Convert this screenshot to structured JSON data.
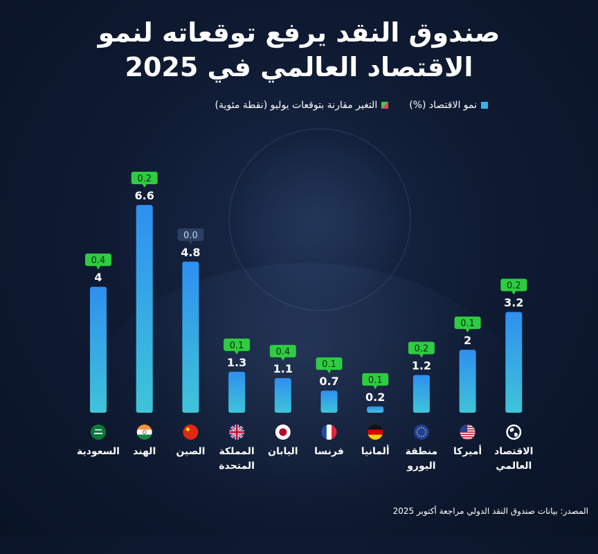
{
  "title_line1": "صندوق النقد يرفع توقعاته لنمو",
  "title_line2": "الاقتصاد العالمي في 2025",
  "legend": {
    "growth": "نمو الاقتصاد (%)",
    "change": "التغير مقارنة بتوقعات يوليو (نقطة مئوية)"
  },
  "source": "المصدر: بيانات صندوق النقد الدولي مراجعة أكتوبر 2025",
  "colors": {
    "bar": "#35b5e8",
    "badge_up": "#2ecc40",
    "badge_flat": "#2a3f63"
  },
  "chart_data": {
    "type": "bar",
    "title": "صندوق النقد يرفع توقعاته لنمو الاقتصاد العالمي في 2025",
    "ylabel": "نمو الاقتصاد (%)",
    "ylim": [
      0,
      7
    ],
    "categories": [
      {
        "label1": "السعودية",
        "label2": "",
        "flag": "saudi-flag-icon"
      },
      {
        "label1": "الهند",
        "label2": "",
        "flag": "india-flag-icon"
      },
      {
        "label1": "الصين",
        "label2": "",
        "flag": "china-flag-icon"
      },
      {
        "label1": "المملكة",
        "label2": "المتحدة",
        "flag": "uk-flag-icon"
      },
      {
        "label1": "اليابان",
        "label2": "",
        "flag": "japan-flag-icon"
      },
      {
        "label1": "فرنسا",
        "label2": "",
        "flag": "france-flag-icon"
      },
      {
        "label1": "ألمانيا",
        "label2": "",
        "flag": "germany-flag-icon"
      },
      {
        "label1": "منطقة",
        "label2": "اليورو",
        "flag": "eu-flag-icon"
      },
      {
        "label1": "أميركا",
        "label2": "",
        "flag": "usa-flag-icon"
      },
      {
        "label1": "الاقتصاد",
        "label2": "العالمي",
        "flag": "globe-icon"
      }
    ],
    "series": [
      {
        "name": "نمو الاقتصاد (%)",
        "values": [
          4,
          6.6,
          4.8,
          1.3,
          1.1,
          0.7,
          0.2,
          1.2,
          2,
          3.2
        ],
        "labels": [
          "4",
          "6.6",
          "4.8",
          "1.3",
          "1.1",
          "0.7",
          "0.2",
          "1.2",
          "2",
          "3.2"
        ]
      },
      {
        "name": "التغير مقارنة بتوقعات يوليو (نقطة مئوية)",
        "values": [
          0.4,
          0.2,
          0.0,
          0.1,
          0.4,
          0.1,
          0.1,
          0.2,
          0.1,
          0.2
        ],
        "labels": [
          "0.4",
          "0.2",
          "0.0",
          "0.1",
          "0.4",
          "0.1",
          "0.1",
          "0.2",
          "0.1",
          "0.2"
        ]
      }
    ]
  }
}
